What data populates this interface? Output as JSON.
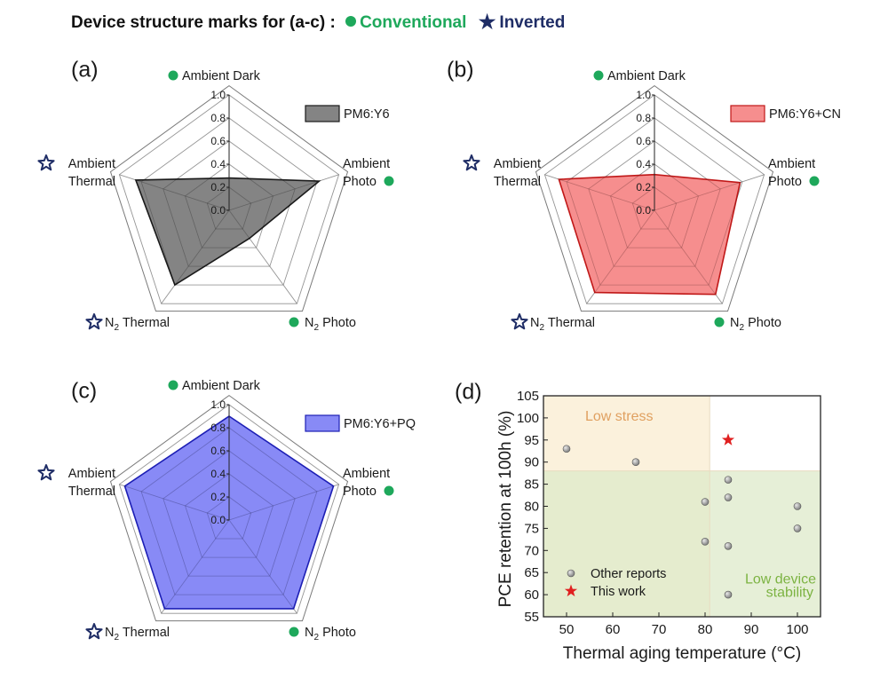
{
  "header": {
    "prefix": "Device structure marks for (a-c) :",
    "conventional": "Conventional",
    "inverted": "Inverted"
  },
  "chart_data": [
    {
      "type": "radar",
      "panel": "(a)",
      "axes": [
        "Ambient Dark",
        "Ambient Photo",
        "N2 Photo",
        "N2 Thermal",
        "Ambient Thermal"
      ],
      "axis_labels": [
        [
          "Ambient Dark"
        ],
        [
          "Ambient",
          "Photo"
        ],
        [
          "Photo"
        ],
        [
          "Thermal"
        ],
        [
          "Ambient",
          "Thermal"
        ]
      ],
      "axis_marks": [
        "conventional",
        "conventional",
        "conventional",
        "inverted",
        "inverted"
      ],
      "ticks": [
        "0.0",
        "0.2",
        "0.4",
        "0.6",
        "0.8",
        "1.0"
      ],
      "range": [
        0,
        1
      ],
      "series": [
        {
          "name": "PM6:Y6",
          "values": [
            0.28,
            0.82,
            0.3,
            0.8,
            0.85
          ]
        }
      ],
      "colors": {
        "fill": "#6f6f6f",
        "stroke": "#1a1a1a"
      }
    },
    {
      "type": "radar",
      "panel": "(b)",
      "axes": [
        "Ambient Dark",
        "Ambient Photo",
        "N2 Photo",
        "N2 Thermal",
        "Ambient Thermal"
      ],
      "axis_labels": [
        [
          "Ambient Dark"
        ],
        [
          "Ambient",
          "Photo"
        ],
        [
          "Photo"
        ],
        [
          "Thermal"
        ],
        [
          "Ambient",
          "Thermal"
        ]
      ],
      "axis_marks": [
        "conventional",
        "conventional",
        "conventional",
        "inverted",
        "inverted"
      ],
      "ticks": [
        "0.0",
        "0.2",
        "0.4",
        "0.6",
        "0.8",
        "1.0"
      ],
      "range": [
        0,
        1
      ],
      "series": [
        {
          "name": "PM6:Y6+CN",
          "values": [
            0.31,
            0.78,
            0.9,
            0.88,
            0.87
          ]
        }
      ],
      "colors": {
        "fill": "#f47a7a",
        "stroke": "#c01818"
      }
    },
    {
      "type": "radar",
      "panel": "(c)",
      "axes": [
        "Ambient Dark",
        "Ambient Photo",
        "N2 Photo",
        "N2 Thermal",
        "Ambient Thermal"
      ],
      "axis_labels": [
        [
          "Ambient Dark"
        ],
        [
          "Ambient",
          "Photo"
        ],
        [
          "Photo"
        ],
        [
          "Thermal"
        ],
        [
          "Ambient",
          "Thermal"
        ]
      ],
      "axis_marks": [
        "conventional",
        "conventional",
        "conventional",
        "inverted",
        "inverted"
      ],
      "ticks": [
        "0.0",
        "0.2",
        "0.4",
        "0.6",
        "0.8",
        "1.0"
      ],
      "range": [
        0,
        1
      ],
      "series": [
        {
          "name": "PM6:Y6+PQ",
          "values": [
            0.9,
            0.95,
            0.95,
            0.95,
            0.95
          ]
        }
      ],
      "colors": {
        "fill": "#7375f5",
        "stroke": "#1d1fb5"
      }
    },
    {
      "type": "scatter",
      "panel": "(d)",
      "xlabel": "Thermal aging temperature (°C)",
      "ylabel": "PCE retention at 100h (%)",
      "xlim": [
        45,
        105
      ],
      "ylim": [
        55,
        105
      ],
      "xticks": [
        50,
        60,
        70,
        80,
        90,
        100
      ],
      "yticks": [
        55,
        60,
        65,
        70,
        75,
        80,
        85,
        90,
        95,
        100,
        105
      ],
      "regions": [
        {
          "label": "Low stress",
          "x": [
            45,
            81
          ],
          "y": [
            55,
            105
          ],
          "color": "#fbf1dc",
          "text_color": "#e0a060"
        },
        {
          "label": "Low device stability",
          "x": [
            45,
            105
          ],
          "y": [
            55,
            88
          ],
          "color": "#dde9c9",
          "text_color": "#7cb342"
        }
      ],
      "series": [
        {
          "name": "Other reports",
          "points": [
            [
              50,
              93
            ],
            [
              65,
              90
            ],
            [
              80,
              81
            ],
            [
              80,
              72
            ],
            [
              85,
              86
            ],
            [
              85,
              82
            ],
            [
              85,
              71
            ],
            [
              85,
              60
            ],
            [
              100,
              80
            ],
            [
              100,
              75
            ]
          ]
        },
        {
          "name": "This work",
          "points": [
            [
              85,
              95
            ]
          ]
        }
      ],
      "colors": {
        "other": "#808080",
        "this": "#e02020"
      }
    }
  ]
}
